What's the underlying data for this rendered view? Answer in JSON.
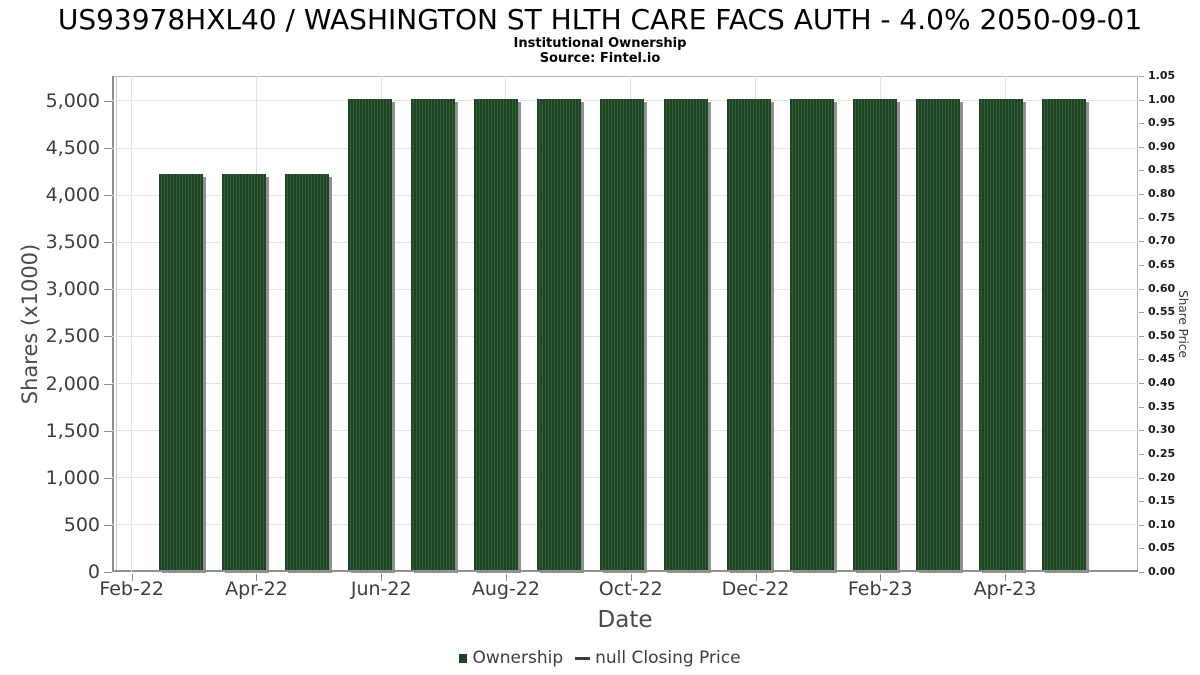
{
  "header": {
    "title": "US93978HXL40 / WASHINGTON ST HLTH CARE FACS AUTH - 4.0% 2050-09-01",
    "subtitle": "Institutional Ownership",
    "source": "Source: Fintel.io"
  },
  "chart_data": {
    "type": "bar",
    "title": "Institutional Ownership",
    "categories": [
      "Feb-22",
      "Mar-22",
      "Apr-22",
      "May-22",
      "Jun-22",
      "Jul-22",
      "Aug-22",
      "Sep-22",
      "Oct-22",
      "Nov-22",
      "Dec-22",
      "Jan-23",
      "Feb-23",
      "Mar-23",
      "Apr-23"
    ],
    "series": [
      {
        "name": "Ownership",
        "type": "bar",
        "color": "#1e4424",
        "values": [
          4200,
          4200,
          4200,
          5000,
          5000,
          5000,
          5000,
          5000,
          5000,
          5000,
          5000,
          5000,
          5000,
          5000,
          5000
        ]
      },
      {
        "name": "null Closing Price",
        "type": "line",
        "color": "#3d3d3d",
        "values": []
      }
    ],
    "xlabel": "Date",
    "ylabel": "Shares (x1000)",
    "y2label": "Share Price",
    "ylim": [
      0,
      5265
    ],
    "y2lim": [
      0,
      1.05
    ],
    "yticks": [
      0,
      500,
      1000,
      1500,
      2000,
      2500,
      3000,
      3500,
      4000,
      4500,
      5000
    ],
    "y2ticks": [
      0,
      0.05,
      0.1,
      0.15,
      0.2,
      0.25,
      0.3,
      0.35,
      0.4,
      0.45,
      0.5,
      0.55,
      0.6,
      0.65,
      0.7,
      0.75,
      0.8,
      0.85,
      0.9,
      0.95,
      1,
      1.05
    ],
    "xtick_labels": [
      "Feb-22",
      "Apr-22",
      "Jun-22",
      "Aug-22",
      "Oct-22",
      "Dec-22",
      "Feb-23",
      "Apr-23"
    ],
    "grid": true,
    "legend_position": "bottom"
  },
  "legend": {
    "items": [
      {
        "label": "Ownership",
        "marker": "square",
        "color": "#1e4424"
      },
      {
        "label": "null Closing Price",
        "marker": "dash",
        "color": "#3d3d3d"
      }
    ]
  }
}
